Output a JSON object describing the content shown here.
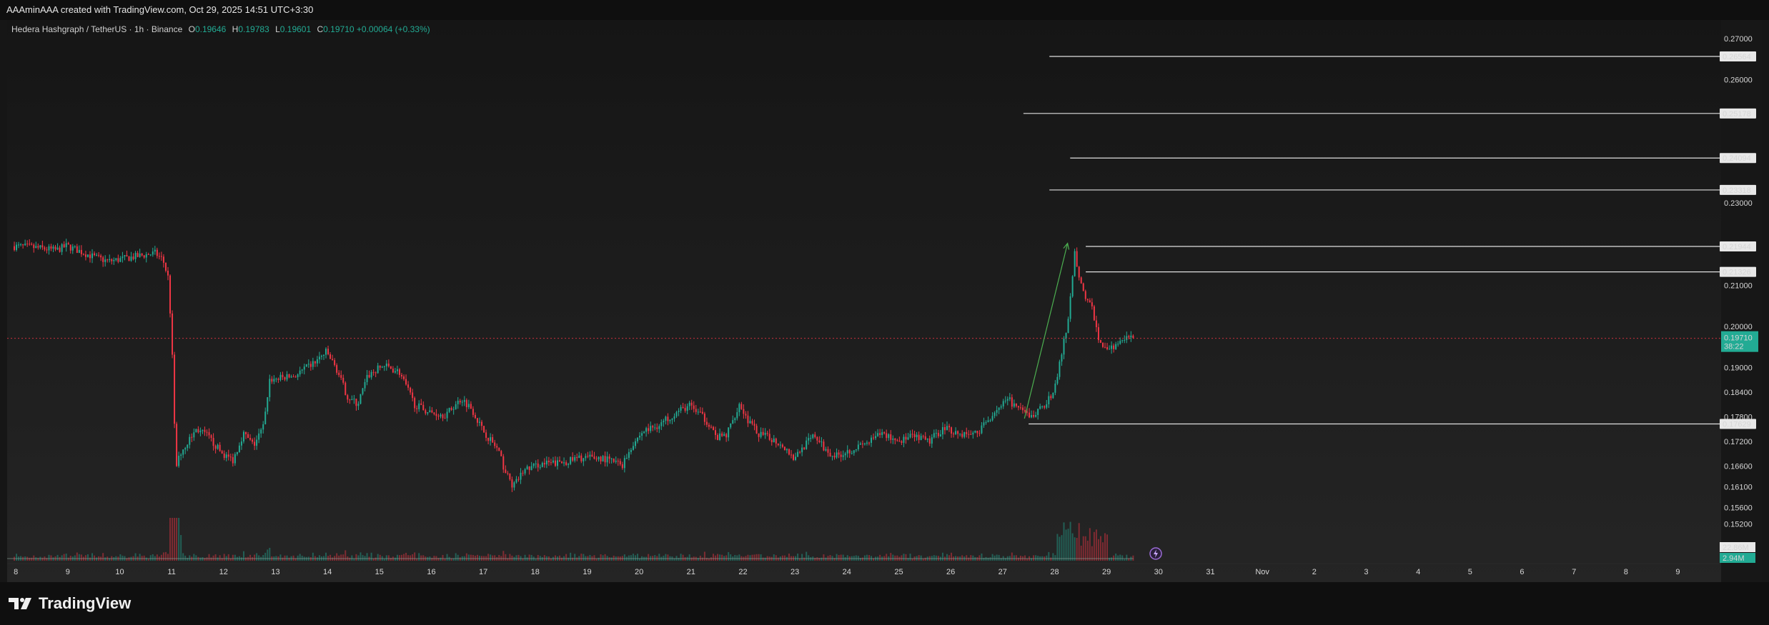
{
  "header": {
    "created_by": "AAAminAAA created with TradingView.com, Oct 29, 2025 14:51 UTC+3:30"
  },
  "legend": {
    "symbol": "Hedera Hashgraph / TetherUS · 1h · Binance",
    "o_label": "O",
    "o": "0.19646",
    "h_label": "H",
    "h": "0.19783",
    "l_label": "L",
    "l": "0.19601",
    "c_label": "C",
    "c": "0.19710",
    "change": "+0.00064 (+0.33%)"
  },
  "brand": {
    "name": "TradingView"
  },
  "colors": {
    "up": "#22ab94",
    "down": "#f23645",
    "level_line": "#e0e0e0",
    "current_price_bg": "#22ab94"
  },
  "chart_data": {
    "type": "candlestick",
    "interval": "1h",
    "y_range": [
      0.1465,
      0.2745
    ],
    "x_range": [
      "Oct 7 20:00",
      "Nov 9 20:00"
    ],
    "price_ticks": [
      "0.27000",
      "0.26000",
      "0.23000",
      "0.21000",
      "0.20000",
      "0.19000",
      "0.18400",
      "0.17800",
      "0.17200",
      "0.16600",
      "0.16100",
      "0.15600",
      "0.15200"
    ],
    "time_ticks": [
      {
        "label": "8",
        "day": 8
      },
      {
        "label": "9",
        "day": 9
      },
      {
        "label": "10",
        "day": 10
      },
      {
        "label": "11",
        "day": 11
      },
      {
        "label": "12",
        "day": 12
      },
      {
        "label": "13",
        "day": 13
      },
      {
        "label": "14",
        "day": 14
      },
      {
        "label": "15",
        "day": 15
      },
      {
        "label": "16",
        "day": 16
      },
      {
        "label": "17",
        "day": 17
      },
      {
        "label": "18",
        "day": 18
      },
      {
        "label": "19",
        "day": 19
      },
      {
        "label": "20",
        "day": 20
      },
      {
        "label": "21",
        "day": 21
      },
      {
        "label": "22",
        "day": 22
      },
      {
        "label": "23",
        "day": 23
      },
      {
        "label": "24",
        "day": 24
      },
      {
        "label": "25",
        "day": 25
      },
      {
        "label": "26",
        "day": 26
      },
      {
        "label": "27",
        "day": 27
      },
      {
        "label": "28",
        "day": 28
      },
      {
        "label": "29",
        "day": 29
      },
      {
        "label": "30",
        "day": 30
      },
      {
        "label": "31",
        "day": 31
      },
      {
        "label": "Nov",
        "day": 32
      },
      {
        "label": "2",
        "day": 33
      },
      {
        "label": "3",
        "day": 34
      },
      {
        "label": "4",
        "day": 35
      },
      {
        "label": "5",
        "day": 36
      },
      {
        "label": "6",
        "day": 37
      },
      {
        "label": "7",
        "day": 38
      },
      {
        "label": "8",
        "day": 39
      },
      {
        "label": "9",
        "day": 40
      }
    ],
    "horizontal_levels": [
      {
        "price": 0.26564,
        "label": "0.26564",
        "start_day": 27.9
      },
      {
        "price": 0.25178,
        "label": "0.25178",
        "start_day": 27.4
      },
      {
        "price": 0.24094,
        "label": "0.24094",
        "start_day": 28.3
      },
      {
        "price": 0.23318,
        "label": "0.23318",
        "start_day": 27.9
      },
      {
        "price": 0.21944,
        "label": "0.21944",
        "start_day": 28.6
      },
      {
        "price": 0.21326,
        "label": "0.21326",
        "start_day": 28.6
      },
      {
        "price": 0.17629,
        "label": "0.17629",
        "start_day": 27.5
      }
    ],
    "trend_arrow": {
      "from": {
        "day": 27.42,
        "price": 0.1776
      },
      "to": {
        "day": 28.25,
        "price": 0.2202
      }
    },
    "current_price": {
      "value": 0.1971,
      "label": "0.19710",
      "countdown": "38:22"
    },
    "volume": {
      "last_label": "22.86M",
      "ma_label": "2.94M"
    },
    "price_path": [
      [
        7.95,
        0.2195
      ],
      [
        8.3,
        0.2193
      ],
      [
        8.8,
        0.2185
      ],
      [
        9.0,
        0.2196
      ],
      [
        9.5,
        0.217
      ],
      [
        9.8,
        0.2158
      ],
      [
        10.2,
        0.2167
      ],
      [
        10.7,
        0.2178
      ],
      [
        10.85,
        0.2163
      ],
      [
        10.95,
        0.212
      ],
      [
        11.02,
        0.198
      ],
      [
        11.1,
        0.1655
      ],
      [
        11.2,
        0.1695
      ],
      [
        11.5,
        0.175
      ],
      [
        11.7,
        0.1735
      ],
      [
        12.0,
        0.169
      ],
      [
        12.2,
        0.1675
      ],
      [
        12.4,
        0.174
      ],
      [
        12.6,
        0.171
      ],
      [
        12.8,
        0.176
      ],
      [
        12.9,
        0.187
      ],
      [
        13.4,
        0.188
      ],
      [
        13.8,
        0.1915
      ],
      [
        14.0,
        0.1938
      ],
      [
        14.2,
        0.1895
      ],
      [
        14.4,
        0.183
      ],
      [
        14.6,
        0.181
      ],
      [
        14.8,
        0.188
      ],
      [
        15.1,
        0.1905
      ],
      [
        15.4,
        0.189
      ],
      [
        15.7,
        0.181
      ],
      [
        16.0,
        0.179
      ],
      [
        16.3,
        0.1785
      ],
      [
        16.6,
        0.1825
      ],
      [
        16.8,
        0.18
      ],
      [
        17.0,
        0.175
      ],
      [
        17.3,
        0.17
      ],
      [
        17.45,
        0.1645
      ],
      [
        17.6,
        0.161
      ],
      [
        17.8,
        0.165
      ],
      [
        18.1,
        0.1665
      ],
      [
        18.5,
        0.1668
      ],
      [
        18.9,
        0.168
      ],
      [
        19.3,
        0.168
      ],
      [
        19.7,
        0.1664
      ],
      [
        19.9,
        0.1715
      ],
      [
        20.1,
        0.1745
      ],
      [
        20.4,
        0.176
      ],
      [
        20.6,
        0.178
      ],
      [
        20.8,
        0.1795
      ],
      [
        21.0,
        0.1808
      ],
      [
        21.2,
        0.1785
      ],
      [
        21.4,
        0.176
      ],
      [
        21.5,
        0.1728
      ],
      [
        21.7,
        0.1735
      ],
      [
        21.85,
        0.178
      ],
      [
        21.95,
        0.1812
      ],
      [
        22.1,
        0.1775
      ],
      [
        22.3,
        0.174
      ],
      [
        22.6,
        0.1725
      ],
      [
        22.8,
        0.171
      ],
      [
        23.0,
        0.168
      ],
      [
        23.2,
        0.171
      ],
      [
        23.4,
        0.1735
      ],
      [
        23.6,
        0.17
      ],
      [
        23.8,
        0.1685
      ],
      [
        24.1,
        0.17
      ],
      [
        24.4,
        0.1715
      ],
      [
        24.7,
        0.174
      ],
      [
        25.0,
        0.1722
      ],
      [
        25.3,
        0.1732
      ],
      [
        25.6,
        0.172
      ],
      [
        25.9,
        0.1755
      ],
      [
        26.2,
        0.1738
      ],
      [
        26.5,
        0.174
      ],
      [
        26.7,
        0.1765
      ],
      [
        26.9,
        0.18
      ],
      [
        27.15,
        0.182
      ],
      [
        27.35,
        0.1795
      ],
      [
        27.6,
        0.178
      ],
      [
        27.8,
        0.1808
      ],
      [
        28.0,
        0.1835
      ],
      [
        28.15,
        0.193
      ],
      [
        28.3,
        0.2025
      ],
      [
        28.4,
        0.2182
      ],
      [
        28.5,
        0.212
      ],
      [
        28.6,
        0.2075
      ],
      [
        28.75,
        0.204
      ],
      [
        28.9,
        0.1955
      ],
      [
        29.0,
        0.1948
      ],
      [
        29.3,
        0.1958
      ],
      [
        29.45,
        0.1975
      ],
      [
        29.52,
        0.197
      ]
    ]
  }
}
